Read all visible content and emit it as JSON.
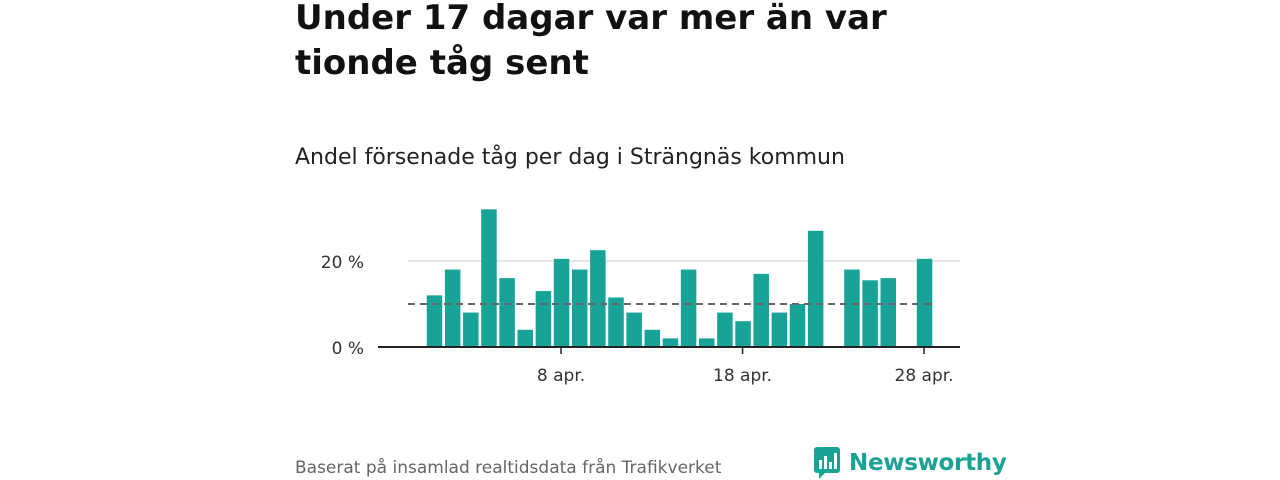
{
  "header": {
    "title": "Under 17 dagar var mer än var tionde tåg sent",
    "subtitle": "Andel försenade tåg per dag i Strängnäs kommun"
  },
  "footer": {
    "source": "Baserat på insamlad realtidsdata från Trafikverket",
    "brand": "Newsworthy"
  },
  "colors": {
    "bar": "#17a398",
    "reference_line": "#666666",
    "grid": "#dddddd",
    "axis": "#222222",
    "brand": "#1aa395"
  },
  "chart_data": {
    "type": "bar",
    "title": "Andel försenade tåg per dag i Strängnäs kommun",
    "xlabel": "",
    "ylabel": "",
    "x_start_day": 1,
    "x_end_day": 30,
    "month_label": "apr.",
    "values": [
      12,
      18,
      8,
      32,
      16,
      4,
      13,
      20.5,
      18,
      22.5,
      11.5,
      8,
      4,
      2,
      18,
      2,
      8,
      6,
      17,
      8,
      10,
      27,
      null,
      18,
      15.5,
      16,
      null,
      20.5
    ],
    "first_bar_day": 1,
    "reference_line": 10,
    "ylim": [
      0,
      33
    ],
    "y_ticks": [
      {
        "value": 0,
        "label": "0 %"
      },
      {
        "value": 20,
        "label": "20 %"
      }
    ],
    "x_ticks": [
      {
        "day": 8,
        "label": "8 apr."
      },
      {
        "day": 18,
        "label": "18 apr."
      },
      {
        "day": 28,
        "label": "28 apr."
      }
    ],
    "grid": true
  }
}
